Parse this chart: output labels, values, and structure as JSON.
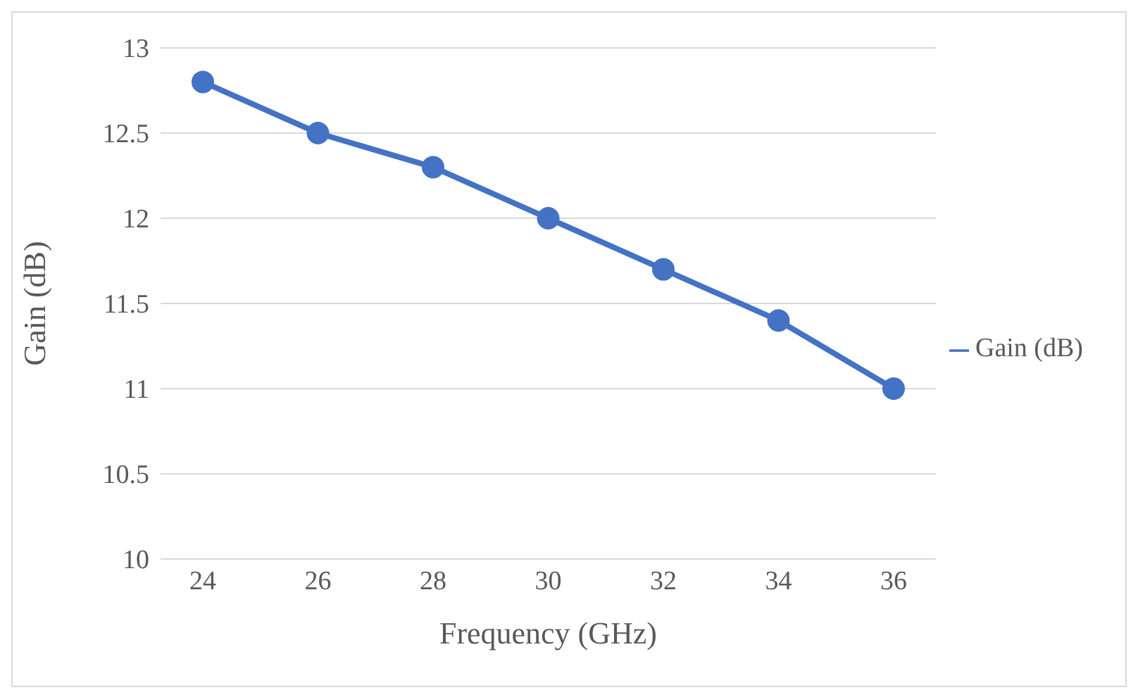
{
  "chart_data": {
    "type": "line",
    "xlabel": "Frequency (GHz)",
    "ylabel": "Gain (dB)",
    "categories": [
      "24",
      "26",
      "28",
      "30",
      "32",
      "34",
      "36"
    ],
    "series": [
      {
        "name": "Gain (dB)",
        "color": "#4472c4",
        "values": [
          12.8,
          12.5,
          12.3,
          12.0,
          11.7,
          11.4,
          11.0
        ]
      }
    ],
    "ylim": [
      10,
      13
    ],
    "yticks": [
      10,
      10.5,
      11,
      11.5,
      12,
      12.5,
      13
    ],
    "grid": "y",
    "legend": "right",
    "marker": "circle"
  }
}
